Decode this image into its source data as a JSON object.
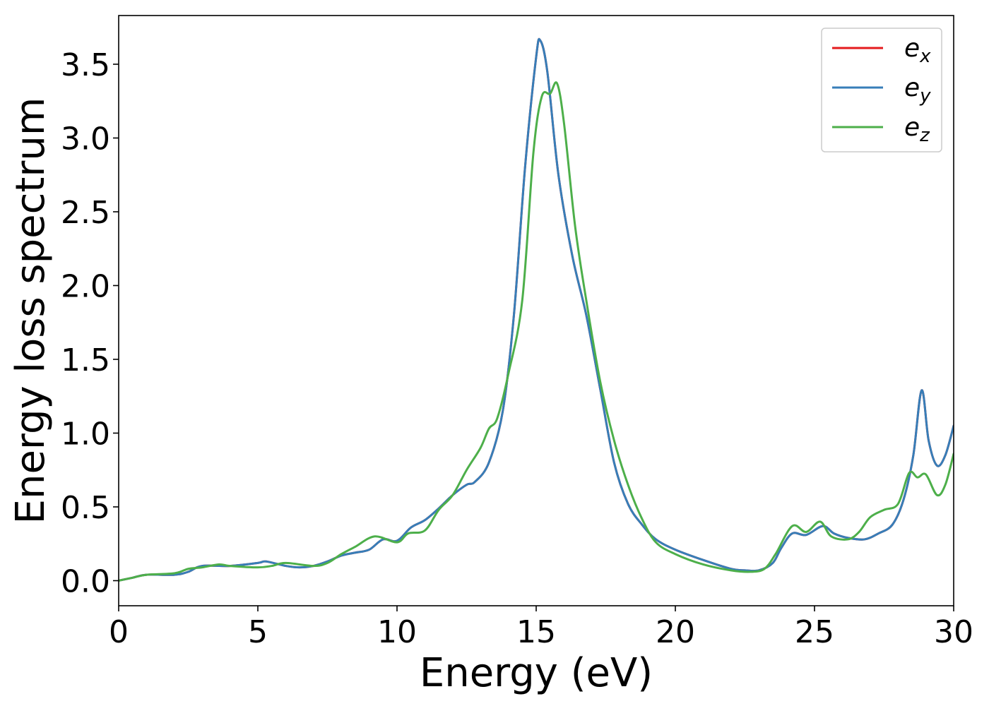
{
  "chart_data": {
    "type": "line",
    "title": "",
    "xlabel": "Energy (eV)",
    "ylabel": "Energy loss spectrum",
    "xlim": [
      0,
      30
    ],
    "ylim": [
      -0.17,
      3.83
    ],
    "xticks": [
      0,
      5,
      10,
      15,
      20,
      25,
      30
    ],
    "xtick_labels": [
      "0",
      "5",
      "10",
      "15",
      "20",
      "25",
      "30"
    ],
    "yticks": [
      0.0,
      0.5,
      1.0,
      1.5,
      2.0,
      2.5,
      3.0,
      3.5
    ],
    "ytick_labels": [
      "0.0",
      "0.5",
      "1.0",
      "1.5",
      "2.0",
      "2.5",
      "3.0",
      "3.5"
    ],
    "grid": false,
    "legend_position": "top-right",
    "colors": {
      "ex": "#e41a1c",
      "ey": "#377eb8",
      "ez": "#4daf4a"
    },
    "series": [
      {
        "key": "ex",
        "name": "e_x",
        "legend_base": "e",
        "legend_sub": "x",
        "color": "#e41a1c",
        "points": [
          [
            0,
            0.0
          ],
          [
            0.5,
            0.02
          ],
          [
            1,
            0.04
          ],
          [
            2,
            0.04
          ],
          [
            2.5,
            0.06
          ],
          [
            3,
            0.1
          ],
          [
            4,
            0.1
          ],
          [
            5,
            0.12
          ],
          [
            5.3,
            0.13
          ],
          [
            6,
            0.1
          ],
          [
            6.5,
            0.09
          ],
          [
            7,
            0.1
          ],
          [
            7.5,
            0.13
          ],
          [
            8,
            0.17
          ],
          [
            8.5,
            0.19
          ],
          [
            9,
            0.21
          ],
          [
            9.5,
            0.28
          ],
          [
            10,
            0.27
          ],
          [
            10.5,
            0.36
          ],
          [
            11,
            0.41
          ],
          [
            11.5,
            0.49
          ],
          [
            12,
            0.58
          ],
          [
            12.5,
            0.65
          ],
          [
            12.8,
            0.67
          ],
          [
            13.3,
            0.8
          ],
          [
            13.8,
            1.15
          ],
          [
            14.2,
            1.8
          ],
          [
            14.6,
            2.8
          ],
          [
            15,
            3.55
          ],
          [
            15.15,
            3.66
          ],
          [
            15.4,
            3.45
          ],
          [
            15.8,
            2.75
          ],
          [
            16.3,
            2.2
          ],
          [
            16.8,
            1.8
          ],
          [
            17.3,
            1.3
          ],
          [
            17.8,
            0.8
          ],
          [
            18.3,
            0.52
          ],
          [
            18.8,
            0.38
          ],
          [
            19.3,
            0.28
          ],
          [
            20,
            0.21
          ],
          [
            21,
            0.14
          ],
          [
            22,
            0.08
          ],
          [
            22.5,
            0.07
          ],
          [
            23,
            0.07
          ],
          [
            23.5,
            0.12
          ],
          [
            23.8,
            0.22
          ],
          [
            24.2,
            0.32
          ],
          [
            24.7,
            0.31
          ],
          [
            25.3,
            0.37
          ],
          [
            25.7,
            0.32
          ],
          [
            26.2,
            0.29
          ],
          [
            26.8,
            0.28
          ],
          [
            27.3,
            0.32
          ],
          [
            27.8,
            0.38
          ],
          [
            28.2,
            0.55
          ],
          [
            28.55,
            0.85
          ],
          [
            28.85,
            1.29
          ],
          [
            29.1,
            0.95
          ],
          [
            29.4,
            0.78
          ],
          [
            29.7,
            0.85
          ],
          [
            30,
            1.05
          ]
        ]
      },
      {
        "key": "ey",
        "name": "e_y",
        "legend_base": "e",
        "legend_sub": "y",
        "color": "#377eb8",
        "points": [
          [
            0,
            0.0
          ],
          [
            0.5,
            0.02
          ],
          [
            1,
            0.04
          ],
          [
            2,
            0.04
          ],
          [
            2.5,
            0.06
          ],
          [
            3,
            0.1
          ],
          [
            4,
            0.1
          ],
          [
            5,
            0.12
          ],
          [
            5.3,
            0.13
          ],
          [
            6,
            0.1
          ],
          [
            6.5,
            0.09
          ],
          [
            7,
            0.1
          ],
          [
            7.5,
            0.13
          ],
          [
            8,
            0.17
          ],
          [
            8.5,
            0.19
          ],
          [
            9,
            0.21
          ],
          [
            9.5,
            0.28
          ],
          [
            10,
            0.27
          ],
          [
            10.5,
            0.36
          ],
          [
            11,
            0.41
          ],
          [
            11.5,
            0.49
          ],
          [
            12,
            0.58
          ],
          [
            12.5,
            0.65
          ],
          [
            12.8,
            0.67
          ],
          [
            13.3,
            0.8
          ],
          [
            13.8,
            1.15
          ],
          [
            14.2,
            1.8
          ],
          [
            14.6,
            2.8
          ],
          [
            15,
            3.55
          ],
          [
            15.15,
            3.66
          ],
          [
            15.4,
            3.45
          ],
          [
            15.8,
            2.75
          ],
          [
            16.3,
            2.2
          ],
          [
            16.8,
            1.8
          ],
          [
            17.3,
            1.3
          ],
          [
            17.8,
            0.8
          ],
          [
            18.3,
            0.52
          ],
          [
            18.8,
            0.38
          ],
          [
            19.3,
            0.28
          ],
          [
            20,
            0.21
          ],
          [
            21,
            0.14
          ],
          [
            22,
            0.08
          ],
          [
            22.5,
            0.07
          ],
          [
            23,
            0.07
          ],
          [
            23.5,
            0.12
          ],
          [
            23.8,
            0.22
          ],
          [
            24.2,
            0.32
          ],
          [
            24.7,
            0.31
          ],
          [
            25.3,
            0.37
          ],
          [
            25.7,
            0.32
          ],
          [
            26.2,
            0.29
          ],
          [
            26.8,
            0.28
          ],
          [
            27.3,
            0.32
          ],
          [
            27.8,
            0.38
          ],
          [
            28.2,
            0.55
          ],
          [
            28.55,
            0.85
          ],
          [
            28.85,
            1.29
          ],
          [
            29.1,
            0.95
          ],
          [
            29.4,
            0.78
          ],
          [
            29.7,
            0.85
          ],
          [
            30,
            1.05
          ]
        ]
      },
      {
        "key": "ez",
        "name": "e_z",
        "legend_base": "e",
        "legend_sub": "z",
        "color": "#4daf4a",
        "points": [
          [
            0,
            0.0
          ],
          [
            0.5,
            0.02
          ],
          [
            1,
            0.04
          ],
          [
            2,
            0.05
          ],
          [
            2.5,
            0.08
          ],
          [
            3,
            0.09
          ],
          [
            3.6,
            0.11
          ],
          [
            4,
            0.1
          ],
          [
            5,
            0.09
          ],
          [
            5.5,
            0.1
          ],
          [
            6,
            0.12
          ],
          [
            7,
            0.1
          ],
          [
            7.5,
            0.12
          ],
          [
            8,
            0.18
          ],
          [
            8.5,
            0.23
          ],
          [
            9.2,
            0.3
          ],
          [
            10,
            0.26
          ],
          [
            10.4,
            0.32
          ],
          [
            11,
            0.34
          ],
          [
            11.5,
            0.48
          ],
          [
            12,
            0.58
          ],
          [
            12.5,
            0.75
          ],
          [
            13,
            0.9
          ],
          [
            13.3,
            1.03
          ],
          [
            13.6,
            1.1
          ],
          [
            14,
            1.4
          ],
          [
            14.5,
            1.9
          ],
          [
            14.9,
            2.9
          ],
          [
            15.2,
            3.28
          ],
          [
            15.5,
            3.3
          ],
          [
            15.75,
            3.37
          ],
          [
            16,
            3.1
          ],
          [
            16.4,
            2.4
          ],
          [
            16.8,
            1.9
          ],
          [
            17.3,
            1.35
          ],
          [
            17.8,
            0.95
          ],
          [
            18.3,
            0.65
          ],
          [
            18.8,
            0.42
          ],
          [
            19.3,
            0.26
          ],
          [
            20,
            0.18
          ],
          [
            21,
            0.11
          ],
          [
            22,
            0.07
          ],
          [
            22.7,
            0.06
          ],
          [
            23.2,
            0.08
          ],
          [
            23.6,
            0.18
          ],
          [
            24.2,
            0.37
          ],
          [
            24.7,
            0.33
          ],
          [
            25.2,
            0.4
          ],
          [
            25.6,
            0.3
          ],
          [
            26.2,
            0.28
          ],
          [
            26.6,
            0.33
          ],
          [
            27,
            0.43
          ],
          [
            27.5,
            0.48
          ],
          [
            28,
            0.52
          ],
          [
            28.4,
            0.73
          ],
          [
            28.7,
            0.7
          ],
          [
            29,
            0.72
          ],
          [
            29.4,
            0.58
          ],
          [
            29.7,
            0.65
          ],
          [
            30,
            0.86
          ]
        ]
      }
    ]
  }
}
